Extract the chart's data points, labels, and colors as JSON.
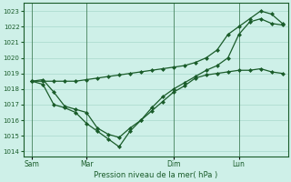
{
  "background_color": "#cef0e8",
  "grid_color": "#a8d8cc",
  "line_color": "#1a5c2a",
  "xlabel": "Pression niveau de la mer( hPa )",
  "ylim": [
    1013.7,
    1023.5
  ],
  "yticks": [
    1014,
    1015,
    1016,
    1017,
    1018,
    1019,
    1020,
    1021,
    1022,
    1023
  ],
  "xtick_labels": [
    "Sam",
    "Mar",
    "Dim",
    "Lun"
  ],
  "xtick_positions": [
    0,
    5,
    13,
    19
  ],
  "series1_x": [
    0,
    1,
    2,
    3,
    4,
    5,
    6,
    7,
    8,
    9,
    10,
    11,
    12,
    13,
    14,
    15,
    16,
    17,
    18,
    19,
    20,
    21,
    22,
    23
  ],
  "series1": [
    1018.5,
    1018.6,
    1017.8,
    1016.9,
    1016.7,
    1016.5,
    1015.5,
    1015.1,
    1014.9,
    1015.5,
    1016.0,
    1016.6,
    1017.2,
    1017.8,
    1018.2,
    1018.7,
    1018.9,
    1019.0,
    1019.1,
    1019.2,
    1019.2,
    1019.3,
    1019.1,
    1019.0
  ],
  "series2": [
    1018.5,
    1018.3,
    1017.0,
    1016.8,
    1016.5,
    1015.8,
    1015.3,
    1014.8,
    1014.3,
    1015.3,
    1016.0,
    1016.8,
    1017.5,
    1018.0,
    1018.4,
    1018.8,
    1019.2,
    1019.5,
    1020.0,
    1021.5,
    1022.3,
    1022.5,
    1022.2,
    1022.1
  ],
  "series3": [
    1018.5,
    1018.5,
    1018.5,
    1018.5,
    1018.5,
    1018.6,
    1018.7,
    1018.8,
    1018.9,
    1019.0,
    1019.1,
    1019.2,
    1019.3,
    1019.4,
    1019.5,
    1019.7,
    1020.0,
    1020.5,
    1021.5,
    1022.0,
    1022.5,
    1023.0,
    1022.8,
    1022.2
  ]
}
